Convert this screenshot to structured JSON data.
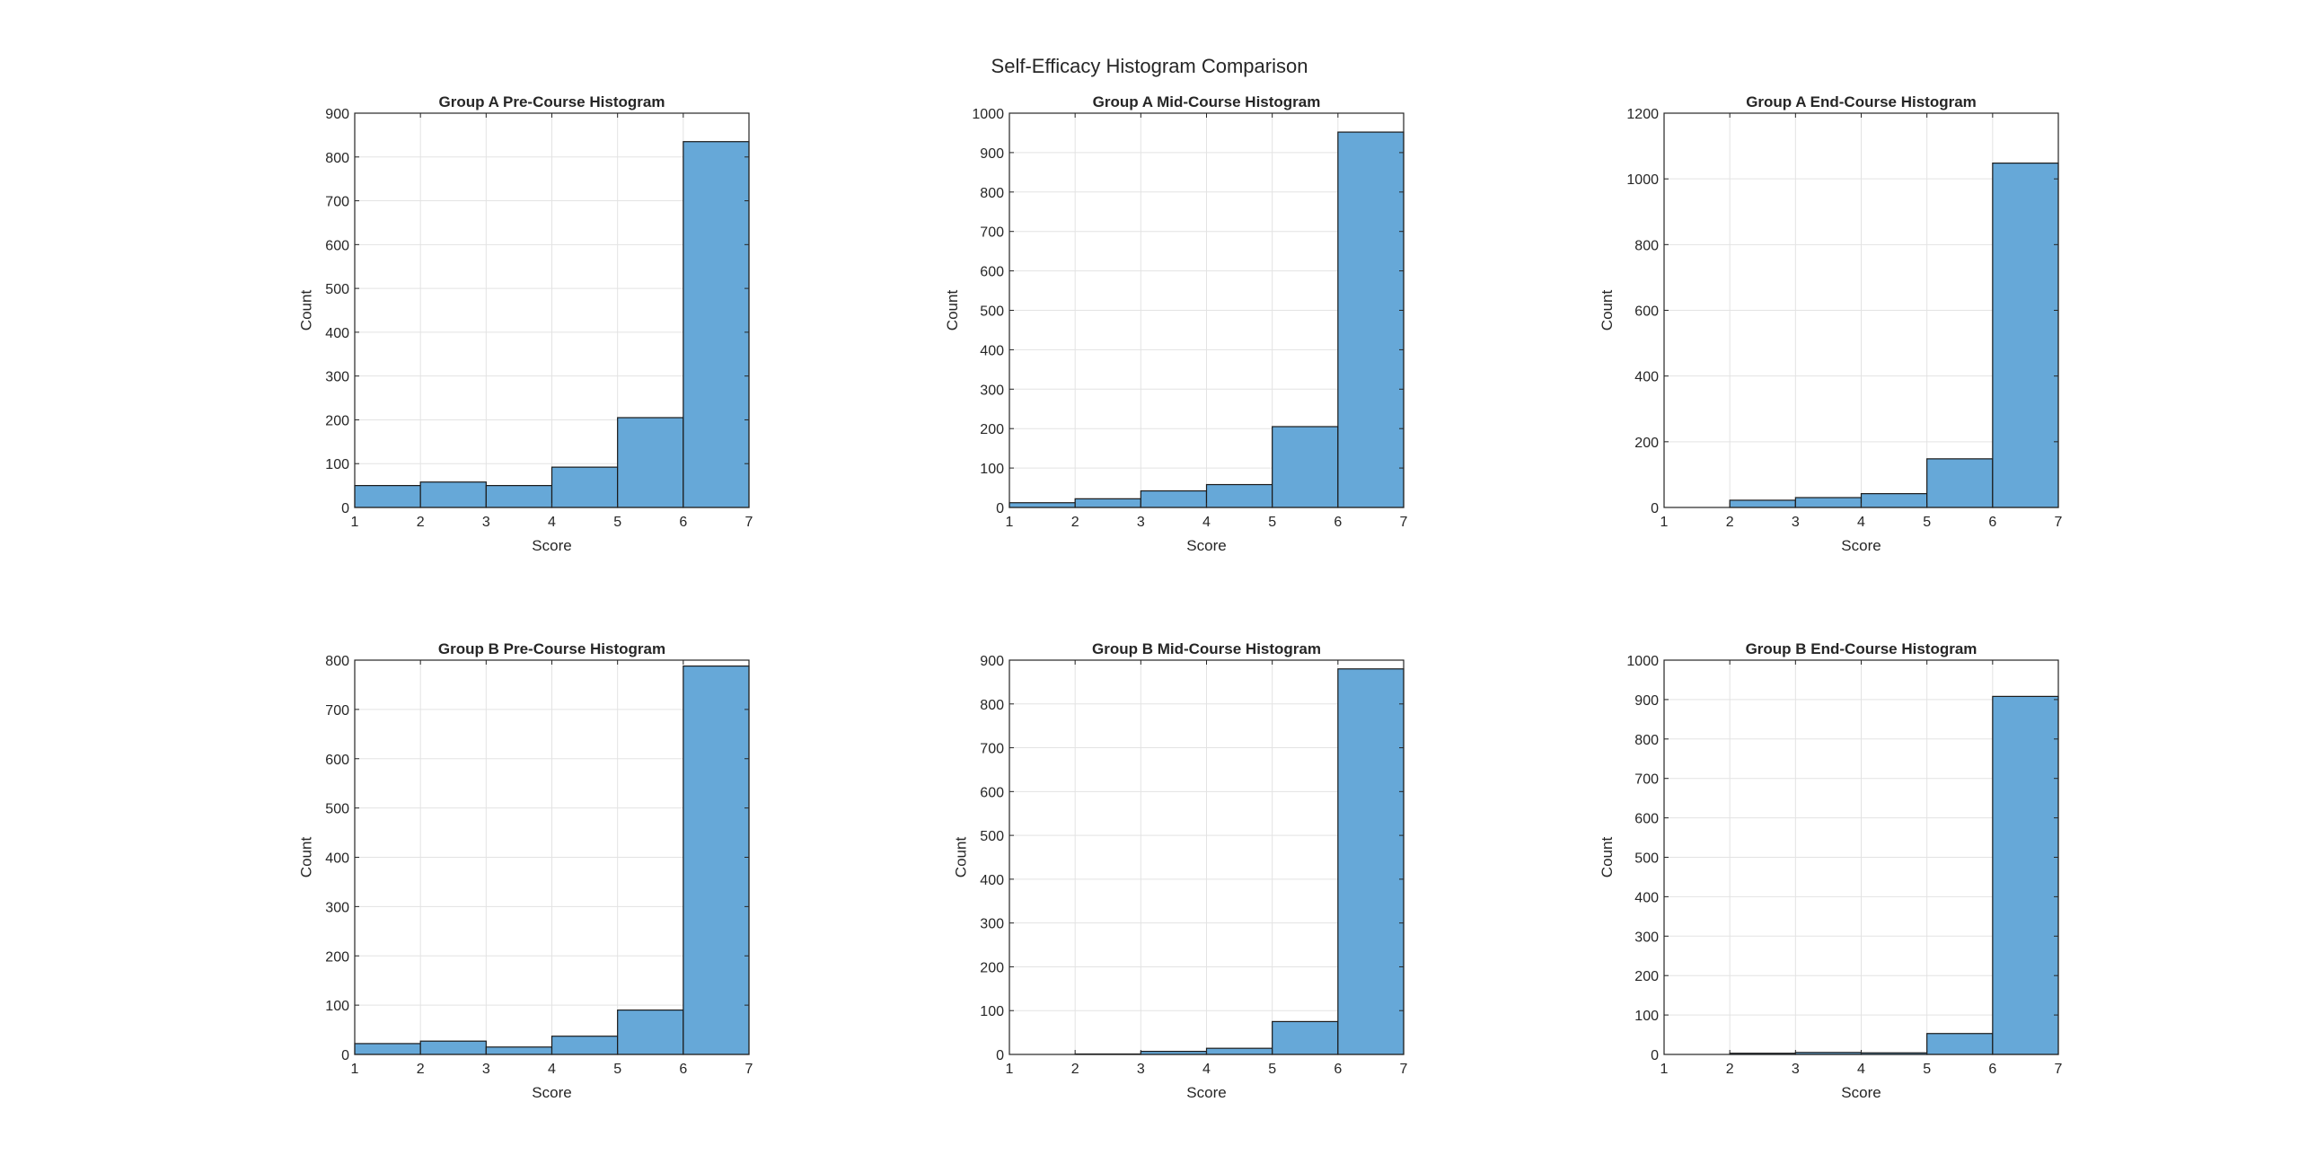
{
  "figure_title": "Self-Efficacy Histogram Comparison",
  "colors": {
    "bar_fill": "#66a8d8",
    "bar_edge": "#1a1a1a",
    "grid": "#e3e3e3",
    "axis": "#262626"
  },
  "chart_data": [
    {
      "type": "bar",
      "title": "Group A Pre-Course Histogram",
      "xlabel": "Score",
      "ylabel": "Count",
      "bin_edges": [
        1,
        2,
        3,
        4,
        5,
        6,
        7
      ],
      "values": [
        50,
        58,
        50,
        92,
        205,
        835
      ],
      "xlim": [
        1,
        7
      ],
      "ylim": [
        0,
        900
      ],
      "xticks": [
        1,
        2,
        3,
        4,
        5,
        6,
        7
      ],
      "yticks": [
        0,
        100,
        200,
        300,
        400,
        500,
        600,
        700,
        800,
        900
      ],
      "grid": true
    },
    {
      "type": "bar",
      "title": "Group A Mid-Course Histogram",
      "xlabel": "Score",
      "ylabel": "Count",
      "bin_edges": [
        1,
        2,
        3,
        4,
        5,
        6,
        7
      ],
      "values": [
        12,
        22,
        42,
        58,
        205,
        952
      ],
      "xlim": [
        1,
        7
      ],
      "ylim": [
        0,
        1000
      ],
      "xticks": [
        1,
        2,
        3,
        4,
        5,
        6,
        7
      ],
      "yticks": [
        0,
        100,
        200,
        300,
        400,
        500,
        600,
        700,
        800,
        900,
        1000
      ],
      "grid": true
    },
    {
      "type": "bar",
      "title": "Group A End-Course Histogram",
      "xlabel": "Score",
      "ylabel": "Count",
      "bin_edges": [
        1,
        2,
        3,
        4,
        5,
        6,
        7
      ],
      "values": [
        0,
        22,
        30,
        42,
        148,
        1048
      ],
      "xlim": [
        1,
        7
      ],
      "ylim": [
        0,
        1200
      ],
      "xticks": [
        1,
        2,
        3,
        4,
        5,
        6,
        7
      ],
      "yticks": [
        0,
        200,
        400,
        600,
        800,
        1000,
        1200
      ],
      "grid": true
    },
    {
      "type": "bar",
      "title": "Group B Pre-Course Histogram",
      "xlabel": "Score",
      "ylabel": "Count",
      "bin_edges": [
        1,
        2,
        3,
        4,
        5,
        6,
        7
      ],
      "values": [
        22,
        27,
        15,
        37,
        90,
        788
      ],
      "xlim": [
        1,
        7
      ],
      "ylim": [
        0,
        800
      ],
      "xticks": [
        1,
        2,
        3,
        4,
        5,
        6,
        7
      ],
      "yticks": [
        0,
        100,
        200,
        300,
        400,
        500,
        600,
        700,
        800
      ],
      "grid": true
    },
    {
      "type": "bar",
      "title": "Group B Mid-Course Histogram",
      "xlabel": "Score",
      "ylabel": "Count",
      "bin_edges": [
        1,
        2,
        3,
        4,
        5,
        6,
        7
      ],
      "values": [
        0,
        1,
        7,
        14,
        75,
        880
      ],
      "xlim": [
        1,
        7
      ],
      "ylim": [
        0,
        900
      ],
      "xticks": [
        1,
        2,
        3,
        4,
        5,
        6,
        7
      ],
      "yticks": [
        0,
        100,
        200,
        300,
        400,
        500,
        600,
        700,
        800,
        900
      ],
      "grid": true
    },
    {
      "type": "bar",
      "title": "Group B End-Course Histogram",
      "xlabel": "Score",
      "ylabel": "Count",
      "bin_edges": [
        1,
        2,
        3,
        4,
        5,
        6,
        7
      ],
      "values": [
        0,
        3,
        5,
        4,
        53,
        908
      ],
      "xlim": [
        1,
        7
      ],
      "ylim": [
        0,
        1000
      ],
      "xticks": [
        1,
        2,
        3,
        4,
        5,
        6,
        7
      ],
      "yticks": [
        0,
        100,
        200,
        300,
        400,
        500,
        600,
        700,
        800,
        900,
        1000
      ],
      "grid": true
    }
  ]
}
